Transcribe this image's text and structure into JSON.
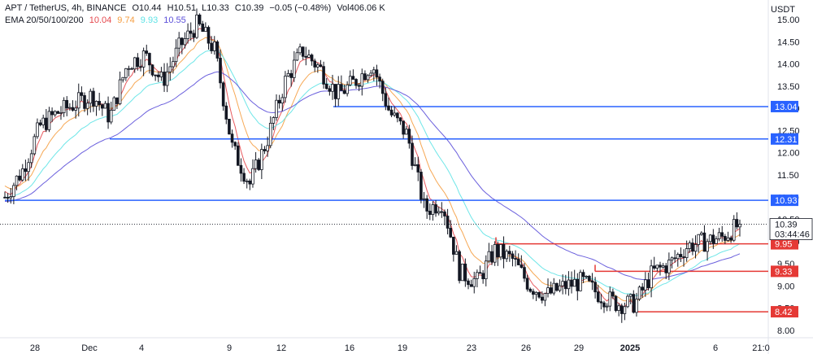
{
  "header": {
    "symbol": "APT / TetherUS, 4h, BINANCE",
    "ohlc": {
      "open": "O10.44",
      "high": "H10.51",
      "low": "L10.33",
      "close": "C10.39"
    },
    "change": "−0.05 (−0.48%)",
    "volume": "Vol406.06 K",
    "ema_label": "EMA 20/50/100/200",
    "ema_values": [
      {
        "value": "10.04",
        "color": "#e5484d"
      },
      {
        "value": "9.74",
        "color": "#f59e42"
      },
      {
        "value": "9.93",
        "color": "#5ee3e6"
      },
      {
        "value": "10.55",
        "color": "#5b4fd9"
      }
    ]
  },
  "axis": {
    "unit": "USDT",
    "y_ticks": [
      "15.00",
      "14.50",
      "14.00",
      "13.50",
      "13.00",
      "12.50",
      "12.00",
      "11.50",
      "11.00",
      "10.50",
      "10.00",
      "9.50",
      "9.00",
      "8.50",
      "8.00"
    ],
    "x_ticks": [
      "28",
      "Dec",
      "4",
      "9",
      "12",
      "16",
      "19",
      "23",
      "26",
      "29",
      "2025",
      "6",
      "21:0"
    ]
  },
  "price_tag": {
    "price": "10.39",
    "countdown": "03:44:46"
  },
  "levels": [
    {
      "label": "13.04",
      "color": "#2962ff"
    },
    {
      "label": "12.31",
      "color": "#2962ff"
    },
    {
      "label": "10.93",
      "color": "#2962ff"
    },
    {
      "label": "9.95",
      "color": "#e53935"
    },
    {
      "label": "9.33",
      "color": "#e53935"
    },
    {
      "label": "8.42",
      "color": "#e53935"
    }
  ],
  "chart_data": {
    "type": "candlestick",
    "y_range": [
      7.9,
      15.2
    ],
    "x_range": [
      "Nov 26",
      "Jan 7"
    ],
    "close_path": [
      {
        "t": "Nov 26",
        "p": 11.0
      },
      {
        "t": "Nov 27",
        "p": 11.6
      },
      {
        "t": "Nov 28",
        "p": 12.6
      },
      {
        "t": "Nov 29",
        "p": 12.9
      },
      {
        "t": "Nov 30",
        "p": 13.1
      },
      {
        "t": "Dec 1",
        "p": 13.3
      },
      {
        "t": "Dec 2",
        "p": 12.8
      },
      {
        "t": "Dec 3",
        "p": 14.0
      },
      {
        "t": "Dec 4",
        "p": 14.2
      },
      {
        "t": "Dec 5",
        "p": 13.6
      },
      {
        "t": "Dec 6",
        "p": 14.4
      },
      {
        "t": "Dec 7",
        "p": 14.9
      },
      {
        "t": "Dec 8",
        "p": 14.3
      },
      {
        "t": "Dec 9",
        "p": 12.1
      },
      {
        "t": "Dec 10",
        "p": 11.3
      },
      {
        "t": "Dec 11",
        "p": 12.3
      },
      {
        "t": "Dec 12",
        "p": 13.6
      },
      {
        "t": "Dec 13",
        "p": 14.3
      },
      {
        "t": "Dec 14",
        "p": 13.9
      },
      {
        "t": "Dec 15",
        "p": 13.3
      },
      {
        "t": "Dec 16",
        "p": 13.6
      },
      {
        "t": "Dec 17",
        "p": 14.0
      },
      {
        "t": "Dec 18",
        "p": 12.9
      },
      {
        "t": "Dec 19",
        "p": 12.4
      },
      {
        "t": "Dec 20",
        "p": 10.7
      },
      {
        "t": "Dec 21",
        "p": 10.9
      },
      {
        "t": "Dec 22",
        "p": 9.3
      },
      {
        "t": "Dec 23",
        "p": 9.1
      },
      {
        "t": "Dec 24",
        "p": 9.8
      },
      {
        "t": "Dec 25",
        "p": 9.6
      },
      {
        "t": "Dec 26",
        "p": 9.0
      },
      {
        "t": "Dec 27",
        "p": 8.8
      },
      {
        "t": "Dec 28",
        "p": 9.0
      },
      {
        "t": "Dec 29",
        "p": 9.1
      },
      {
        "t": "Dec 30",
        "p": 8.8
      },
      {
        "t": "Dec 31",
        "p": 8.6
      },
      {
        "t": "Jan 1",
        "p": 8.6
      },
      {
        "t": "Jan 2",
        "p": 9.3
      },
      {
        "t": "Jan 3",
        "p": 9.5
      },
      {
        "t": "Jan 4",
        "p": 9.9
      },
      {
        "t": "Jan 5",
        "p": 10.0
      },
      {
        "t": "Jan 6",
        "p": 10.1
      },
      {
        "t": "Jan 7",
        "p": 10.39
      }
    ],
    "ema_series": [
      {
        "name": "EMA 20",
        "color": "#e5484d"
      },
      {
        "name": "EMA 50",
        "color": "#f59e42"
      },
      {
        "name": "EMA 100",
        "color": "#5ee3e6"
      },
      {
        "name": "EMA 200",
        "color": "#5b4fd9"
      }
    ],
    "horizontal_levels": [
      13.04,
      12.31,
      10.93,
      9.95,
      9.33,
      8.42
    ],
    "last_price": 10.39,
    "colors": {
      "up": "#089981",
      "down": "#131722",
      "grid": "#eef0f3"
    }
  }
}
